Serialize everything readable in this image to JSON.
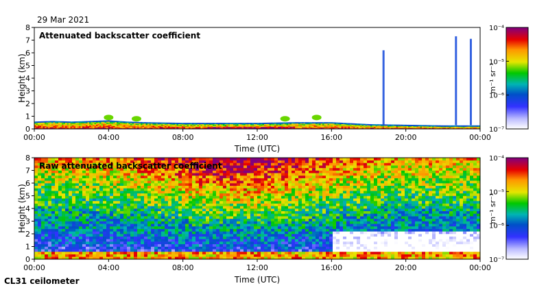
{
  "date": "29 Mar 2021",
  "instrument": "CL31 ceilometer",
  "colorbar": {
    "units": "m⁻¹ sr⁻¹",
    "ticks": [
      "10⁻⁴",
      "10⁻⁵",
      "10⁻⁶",
      "10⁻⁷"
    ]
  },
  "chart_data": [
    {
      "type": "heatmap",
      "title": "Attenuated backscatter coefficient",
      "xlabel": "Time (UTC)",
      "ylabel": "Height (km)",
      "xlim": [
        0,
        24
      ],
      "ylim": [
        0,
        8
      ],
      "xticks": [
        "00:00",
        "04:00",
        "08:00",
        "12:00",
        "16:00",
        "20:00",
        "00:00"
      ],
      "yticks": [
        "0",
        "1",
        "2",
        "3",
        "4",
        "5",
        "6",
        "7",
        "8"
      ],
      "colorscale": "log10, 1e-7 to 1e-4 m^-1 sr^-1",
      "boundary_layer_top_km": [
        [
          0,
          0.5
        ],
        [
          1,
          0.55
        ],
        [
          2,
          0.5
        ],
        [
          3,
          0.55
        ],
        [
          4,
          0.6
        ],
        [
          5,
          0.5
        ],
        [
          6,
          0.45
        ],
        [
          8,
          0.4
        ],
        [
          10,
          0.4
        ],
        [
          12,
          0.4
        ],
        [
          14,
          0.45
        ],
        [
          16,
          0.45
        ],
        [
          18,
          0.3
        ],
        [
          20,
          0.25
        ],
        [
          22,
          0.2
        ],
        [
          24,
          0.2
        ]
      ],
      "cloud_features_km": [
        {
          "time_h": 4.0,
          "height_km": 0.9
        },
        {
          "time_h": 5.5,
          "height_km": 0.8
        },
        {
          "time_h": 13.5,
          "height_km": 0.8
        },
        {
          "time_h": 15.2,
          "height_km": 0.9
        },
        {
          "time_h": 18.8,
          "height_km": 6.2
        },
        {
          "time_h": 22.7,
          "height_km": 7.3
        },
        {
          "time_h": 23.5,
          "height_km": 7.1
        }
      ]
    },
    {
      "type": "heatmap",
      "title": "Raw attenuated backscatter coefficient",
      "xlabel": "Time (UTC)",
      "ylabel": "Height (km)",
      "xlim": [
        0,
        24
      ],
      "ylim": [
        0,
        8
      ],
      "xticks": [
        "00:00",
        "04:00",
        "08:00",
        "12:00",
        "16:00",
        "20:00",
        "00:00"
      ],
      "yticks": [
        "0",
        "1",
        "2",
        "3",
        "4",
        "5",
        "6",
        "7",
        "8"
      ],
      "colorscale": "log10, 1e-7 to 1e-4 m^-1 sr^-1",
      "noise_peak_time_h": 11,
      "clear_region_time_h": [
        16,
        24
      ]
    }
  ]
}
